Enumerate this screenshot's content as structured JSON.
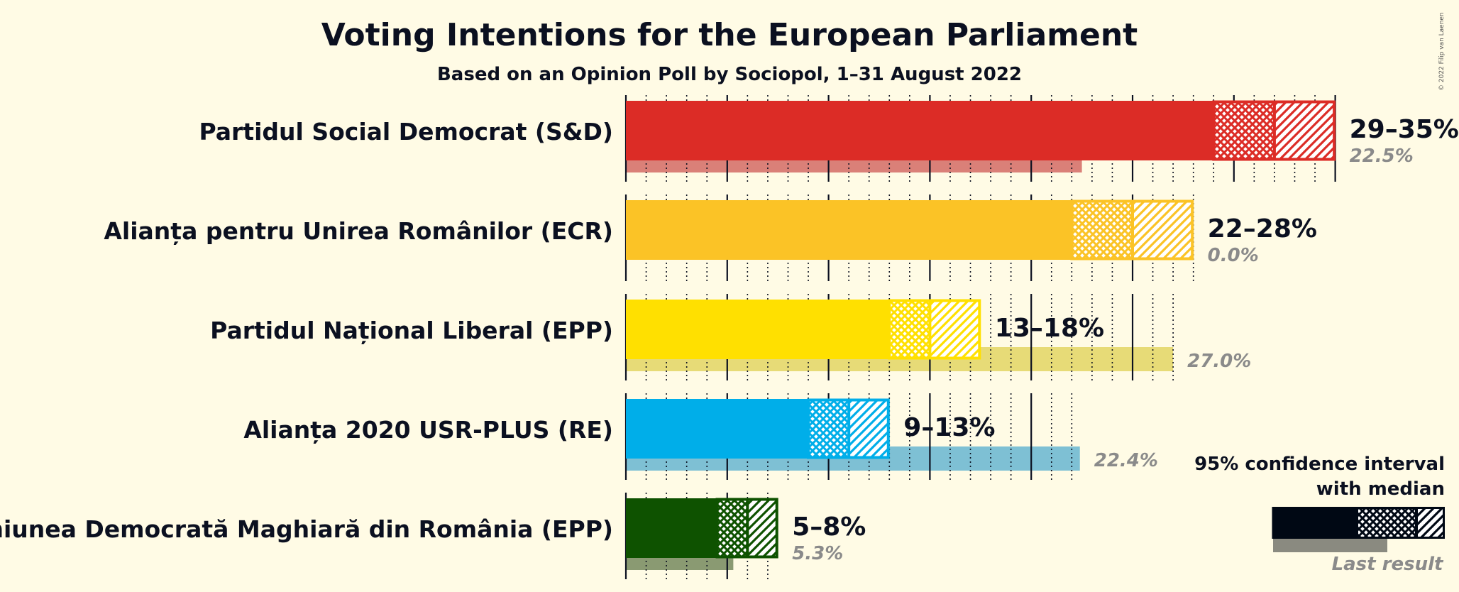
{
  "copyright": "© 2022 Filip van Laenen",
  "chart_data": {
    "type": "bar",
    "title": "Voting Intentions for the European Parliament",
    "subtitle": "Based on an Opinion Poll by Sociopol, 1–31 August 2022",
    "parties": [
      {
        "name": "Partidul Social Democrat (S&D)",
        "low": 29,
        "median": 32,
        "high": 35,
        "range_label": "29–35%",
        "last_result": 22.5,
        "last_label": "22.5%",
        "color": "#DC2C26",
        "last_color": "#DA8078"
      },
      {
        "name": "Alianța pentru Unirea Românilor (ECR)",
        "low": 22,
        "median": 25,
        "high": 28,
        "range_label": "22–28%",
        "last_result": 0.0,
        "last_label": "0.0%",
        "color": "#FBC326",
        "last_color": "#F0D07A"
      },
      {
        "name": "Partidul Național Liberal (EPP)",
        "low": 13,
        "median": 15,
        "high": 17.5,
        "range_label": "13–18%",
        "last_result": 27.0,
        "last_label": "27.0%",
        "color": "#FFE000",
        "last_color": "#E7DB77"
      },
      {
        "name": "Alianța 2020 USR-PLUS (RE)",
        "low": 9,
        "median": 11,
        "high": 13,
        "range_label": "9–13%",
        "last_result": 22.4,
        "last_label": "22.4%",
        "color": "#00AEE9",
        "last_color": "#7EC0D4"
      },
      {
        "name": "Uniunea Democrată Maghiară din România (EPP)",
        "low": 4.5,
        "median": 6,
        "high": 7.5,
        "range_label": "5–8%",
        "last_result": 5.3,
        "last_label": "5.3%",
        "color": "#0E5200",
        "last_color": "#8A9A72"
      }
    ],
    "xlim": [
      0,
      35
    ],
    "legend": {
      "title_line1": "95% confidence interval",
      "title_line2": "with median",
      "last_result": "Last result",
      "position": "bottom-right"
    }
  }
}
